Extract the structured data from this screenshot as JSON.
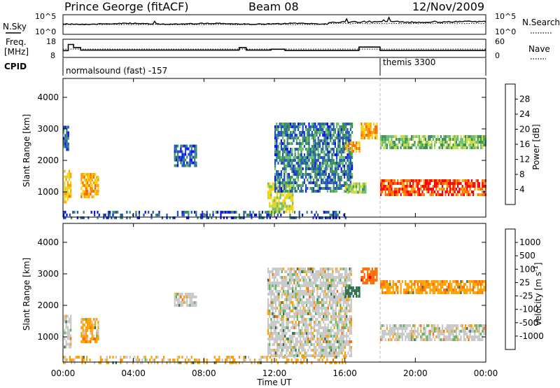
{
  "header": {
    "station": "Prince George (fitACF)",
    "beam": "Beam 08",
    "date": "12/Nov/2009"
  },
  "params": {
    "nsky_label": "N.Sky",
    "nsearch_label": "N.Search",
    "freq_label_1": "Freq.",
    "freq_label_2": "[MHz]",
    "nave_label": "Nave",
    "cpid_label": "CPID",
    "left_ticks_noise": [
      "10^5",
      "10^0"
    ],
    "right_ticks_noise": [
      "10^5",
      "10^0"
    ],
    "left_ticks_freq": [
      "18",
      "8"
    ],
    "right_ticks_nave": [
      "60",
      "0"
    ],
    "cpid_1": "normalsound (fast) -157",
    "cpid_2": "themis 3300",
    "cpid_switch_hour": 18.0,
    "freq_series": [
      {
        "t0": 0.0,
        "t1": 0.3,
        "mhz": 11.5
      },
      {
        "t0": 0.3,
        "t1": 0.6,
        "mhz": 15.5
      },
      {
        "t0": 0.6,
        "t1": 1.0,
        "mhz": 13.5
      },
      {
        "t0": 1.0,
        "t1": 10.0,
        "mhz": 11.8
      },
      {
        "t0": 10.0,
        "t1": 10.4,
        "mhz": 13.5
      },
      {
        "t0": 10.4,
        "t1": 11.8,
        "mhz": 11.8
      },
      {
        "t0": 11.8,
        "t1": 12.6,
        "mhz": 12.4
      },
      {
        "t0": 12.6,
        "t1": 16.8,
        "mhz": 11.6
      },
      {
        "t0": 16.8,
        "t1": 18.0,
        "mhz": 13.8
      },
      {
        "t0": 18.0,
        "t1": 24.0,
        "mhz": 11.6
      }
    ],
    "nave_dotted_level": 27
  },
  "chart_data": {
    "type": "heatmap",
    "x_label": "Time UT",
    "x_ticks": [
      "00:00",
      "04:00",
      "08:00",
      "12:00",
      "16:00",
      "20:00",
      "00:00"
    ],
    "x_range_hours": [
      0,
      24
    ],
    "y_label": "Slant Range [km]",
    "y_ticks": [
      1000,
      2000,
      3000,
      4000
    ],
    "y_range_km": [
      200,
      4600
    ],
    "panels": [
      {
        "name": "power",
        "colorbar_label": "Power [dB]",
        "colorbar_ticks": [
          "28",
          "24",
          "20",
          "16",
          "12",
          "8",
          "4"
        ],
        "colorbar_colors": [
          "#ff0000",
          "#ff6a00",
          "#ff9f00",
          "#ffcf00",
          "#c8dc3c",
          "#6bbf6b",
          "#3a8f5a",
          "#1e50c8",
          "#0a0aff"
        ],
        "echo_regions": [
          {
            "t0": 0.05,
            "t1": 0.45,
            "r0": 700,
            "r1": 1700,
            "level": 20
          },
          {
            "t0": 0.0,
            "t1": 0.3,
            "r0": 2300,
            "r1": 3100,
            "level": 6
          },
          {
            "t0": 1.0,
            "t1": 2.0,
            "r0": 800,
            "r1": 1600,
            "level": 22
          },
          {
            "t0": 6.3,
            "t1": 7.6,
            "r0": 1800,
            "r1": 2500,
            "level": 6
          },
          {
            "t0": 11.6,
            "t1": 13.0,
            "r0": 400,
            "r1": 1300,
            "level": 16
          },
          {
            "t0": 12.0,
            "t1": 16.4,
            "r0": 1000,
            "r1": 3200,
            "level": 7
          },
          {
            "t0": 16.0,
            "t1": 17.2,
            "r0": 1000,
            "r1": 1300,
            "level": 14
          },
          {
            "t0": 16.0,
            "t1": 16.8,
            "r0": 2300,
            "r1": 2600,
            "level": 22
          },
          {
            "t0": 16.9,
            "t1": 17.8,
            "r0": 2700,
            "r1": 3200,
            "level": 22
          },
          {
            "t0": 18.0,
            "t1": 24.0,
            "r0": 900,
            "r1": 1400,
            "level": 28
          },
          {
            "t0": 18.0,
            "t1": 24.0,
            "r0": 2400,
            "r1": 2800,
            "level": 12
          },
          {
            "t0": 0.0,
            "t1": 16.0,
            "r0": 200,
            "r1": 400,
            "level": 5
          }
        ]
      },
      {
        "name": "velocity",
        "colorbar_label": "Velocity [m s^-1]",
        "colorbar_ticks": [
          "1000",
          "500",
          "100",
          "25",
          "-25",
          "-100",
          "-500",
          "-1000"
        ],
        "colorbar_colors": [
          "#2050d0",
          "#2f6f4f",
          "#5ab45a",
          "#c8c8c8",
          "#c8c8c8",
          "#ffa000",
          "#ff6a00",
          "#ff0000"
        ],
        "echo_regions": [
          {
            "t0": 0.05,
            "t1": 0.45,
            "r0": 700,
            "r1": 1700,
            "level": 0
          },
          {
            "t0": 1.0,
            "t1": 2.0,
            "r0": 800,
            "r1": 1600,
            "level": -40
          },
          {
            "t0": 6.3,
            "t1": 7.6,
            "r0": 2000,
            "r1": 2400,
            "level": 0
          },
          {
            "t0": 11.6,
            "t1": 16.4,
            "r0": 400,
            "r1": 3200,
            "level": 0
          },
          {
            "t0": 16.0,
            "t1": 16.8,
            "r0": 2300,
            "r1": 2600,
            "level": 150
          },
          {
            "t0": 16.9,
            "t1": 17.8,
            "r0": 2700,
            "r1": 3200,
            "level": -400
          },
          {
            "t0": 18.0,
            "t1": 24.0,
            "r0": 900,
            "r1": 1400,
            "level": 0
          },
          {
            "t0": 18.0,
            "t1": 24.0,
            "r0": 2400,
            "r1": 2800,
            "level": -80
          },
          {
            "t0": 0.0,
            "t1": 16.0,
            "r0": 200,
            "r1": 400,
            "level": -30
          }
        ]
      }
    ]
  }
}
